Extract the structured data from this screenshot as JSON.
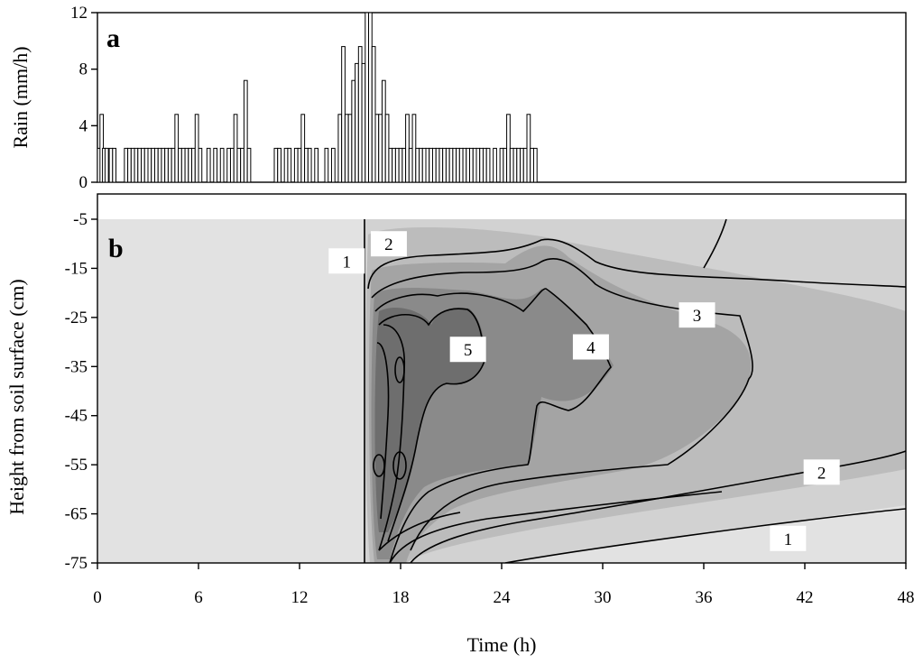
{
  "chart_data": [
    {
      "panel": "a",
      "type": "bar",
      "xlabel": "",
      "ylabel": "Rain (mm/h)",
      "xlim": [
        0,
        48
      ],
      "ylim": [
        0,
        12
      ],
      "yticks": [
        "0",
        "4",
        "8",
        "12"
      ],
      "grid": false,
      "series": [
        {
          "x": [
            0.1,
            0.25,
            0.4,
            0.55,
            0.8,
            1.0,
            1.7,
            1.9,
            2.1,
            2.3,
            2.5,
            2.7,
            2.9,
            3.1,
            3.3,
            3.5,
            3.7,
            3.9,
            4.1,
            4.3,
            4.5,
            4.7,
            4.9,
            5.1,
            5.3,
            5.5,
            5.7,
            5.9,
            6.1,
            6.6,
            7.0,
            7.4,
            7.8,
            8.0,
            8.2,
            8.4,
            8.6,
            8.8,
            9.0,
            10.6,
            10.8,
            11.2,
            11.4,
            11.8,
            12.0,
            12.2,
            12.4,
            12.6,
            13.0,
            13.6,
            14.0,
            14.4,
            14.6,
            14.8,
            15.0,
            15.2,
            15.4,
            15.6,
            15.8,
            16.0,
            16.2,
            16.4,
            16.6,
            16.8,
            17.0,
            17.2,
            17.4,
            17.6,
            17.8,
            18.0,
            18.2,
            18.4,
            18.6,
            18.8,
            19.0,
            19.2,
            19.4,
            19.6,
            19.8,
            20.0,
            20.2,
            20.4,
            20.6,
            20.8,
            21.0,
            21.2,
            21.4,
            21.6,
            21.8,
            22.0,
            22.2,
            22.4,
            22.6,
            22.8,
            23.0,
            23.2,
            23.6,
            24.0,
            24.2,
            24.4,
            24.6,
            24.8,
            25.0,
            25.2,
            25.4,
            25.6,
            25.8,
            26.0
          ],
          "y": [
            2.4,
            4.8,
            2.4,
            2.4,
            2.4,
            2.4,
            2.4,
            2.4,
            2.4,
            2.4,
            2.4,
            2.4,
            2.4,
            2.4,
            2.4,
            2.4,
            2.4,
            2.4,
            2.4,
            2.4,
            2.4,
            4.8,
            2.4,
            2.4,
            2.4,
            2.4,
            2.4,
            4.8,
            2.4,
            2.4,
            2.4,
            2.4,
            2.4,
            2.4,
            4.8,
            2.4,
            2.4,
            7.2,
            2.4,
            2.4,
            2.4,
            2.4,
            2.4,
            2.4,
            2.4,
            4.8,
            2.4,
            2.4,
            2.4,
            2.4,
            2.4,
            4.8,
            9.6,
            4.8,
            4.8,
            7.2,
            8.4,
            9.6,
            8.4,
            12.0,
            12.0,
            9.6,
            4.8,
            4.8,
            7.2,
            4.8,
            2.4,
            2.4,
            2.4,
            2.4,
            2.4,
            4.8,
            2.4,
            4.8,
            2.4,
            2.4,
            2.4,
            2.4,
            2.4,
            2.4,
            2.4,
            2.4,
            2.4,
            2.4,
            2.4,
            2.4,
            2.4,
            2.4,
            2.4,
            2.4,
            2.4,
            2.4,
            2.4,
            2.4,
            2.4,
            2.4,
            2.4,
            2.4,
            2.4,
            4.8,
            2.4,
            2.4,
            2.4,
            2.4,
            2.4,
            4.8,
            2.4,
            2.4
          ]
        }
      ]
    },
    {
      "panel": "b",
      "type": "heatmap",
      "xlabel": "Time (h)",
      "ylabel": "Height from soil surface (cm)",
      "xlim": [
        0,
        48
      ],
      "ylim": [
        -75,
        -5
      ],
      "xticks": [
        "0",
        "6",
        "12",
        "18",
        "24",
        "30",
        "36",
        "42",
        "48"
      ],
      "yticks": [
        "-5",
        "-15",
        "-25",
        "-35",
        "-45",
        "-55",
        "-65",
        "-75"
      ],
      "contour_levels": [
        "1",
        "2",
        "3",
        "4",
        "5"
      ],
      "contour_label_positions": [
        {
          "text": "1",
          "x": 14.8,
          "y": -13.5
        },
        {
          "text": "2",
          "x": 17.3,
          "y": -10.0
        },
        {
          "text": "5",
          "x": 22.0,
          "y": -31.5
        },
        {
          "text": "4",
          "x": 29.3,
          "y": -31.0
        },
        {
          "text": "3",
          "x": 35.6,
          "y": -24.5
        },
        {
          "text": "2",
          "x": 43.0,
          "y": -56.5
        },
        {
          "text": "1",
          "x": 41.0,
          "y": -70.0
        }
      ],
      "colors": [
        "#e2e2e2",
        "#d2d2d2",
        "#bcbcbc",
        "#a4a4a4",
        "#8a8a8a",
        "#6e6e6e"
      ],
      "grid": false
    }
  ]
}
